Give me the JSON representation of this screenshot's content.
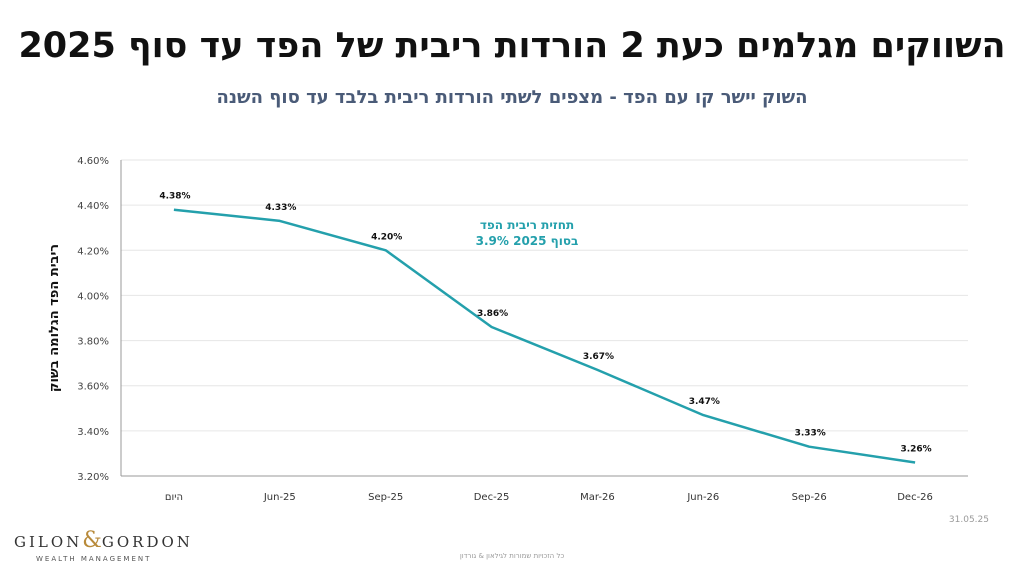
{
  "title": "השווקים מגלמים כעת 2 הורדות ריבית של הפד עד סוף 2025",
  "subtitle": "השוק יישר קו עם הפד - מצפים לשתי הורדות ריבית בלבד עד סוף השנה",
  "date": "31.05.25",
  "footer": "כל הזכויות שמורות לגילאון & גורדון",
  "logo": {
    "main_left": "GILON",
    "amp": "&",
    "main_right": "GORDON",
    "sub": "WEALTH MANAGEMENT"
  },
  "colors": {
    "line": "#24a0ac",
    "annotation": "#24a0ac",
    "grid": "#e6e6e6",
    "axis": "#999999"
  },
  "chart_data": {
    "type": "line",
    "categories": [
      "היום",
      "Jun-25",
      "Sep-25",
      "Dec-25",
      "Mar-26",
      "Jun-26",
      "Sep-26",
      "Dec-26"
    ],
    "values": [
      4.38,
      4.33,
      4.2,
      3.86,
      3.67,
      3.47,
      3.33,
      3.26
    ],
    "data_labels": [
      "4.38%",
      "4.33%",
      "4.20%",
      "3.86%",
      "3.67%",
      "3.47%",
      "3.33%",
      "3.26%"
    ],
    "ylabel": "ריבית הפד הגלומה בשוק",
    "xlabel": "",
    "ylim": [
      3.2,
      4.6
    ],
    "yticks": [
      "3.20%",
      "3.40%",
      "3.60%",
      "3.80%",
      "4.00%",
      "4.20%",
      "4.40%",
      "4.60%"
    ],
    "grid": true,
    "annotation": {
      "line1": "תחזית ריבית הפד",
      "line2": "בסוף 2025 3.9%"
    }
  }
}
